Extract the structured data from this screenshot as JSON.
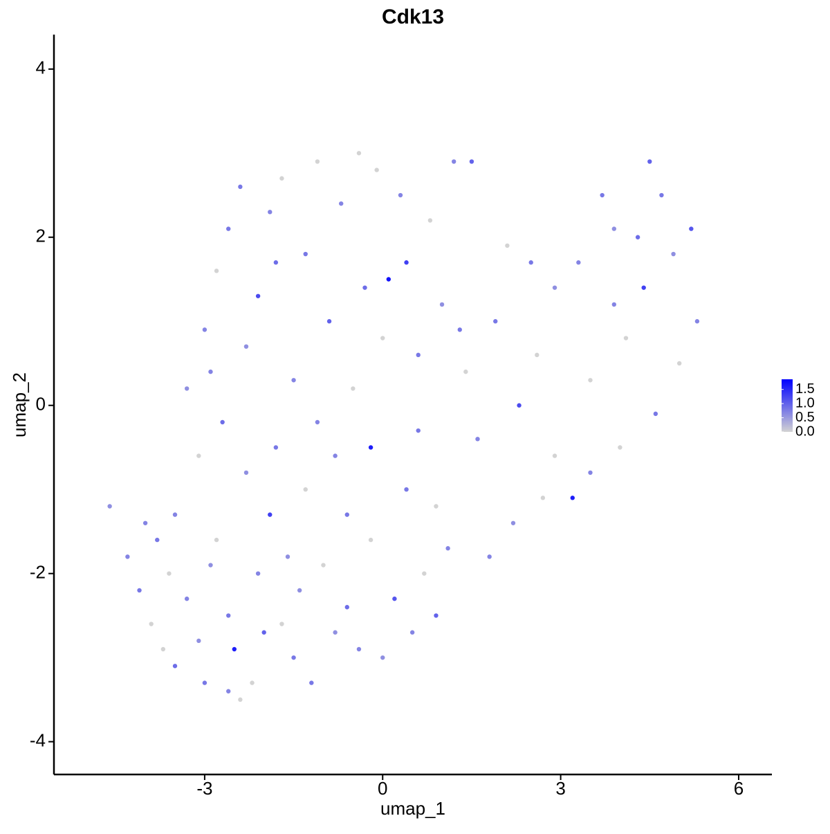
{
  "chart_data": {
    "type": "scatter",
    "title": "Cdk13",
    "x_label": "umap_1",
    "y_label": "umap_2",
    "xlim": [
      -5.54,
      6.56
    ],
    "ylim": [
      -4.39,
      4.41
    ],
    "xticks": [
      -3,
      0,
      3,
      6
    ],
    "yticks": [
      -4,
      -2,
      0,
      2,
      4
    ],
    "color_low": "#d3d3d3",
    "color_high": "#0000ff",
    "colorlim": [
      0,
      1.86
    ],
    "colorticks": [
      {
        "value": 0,
        "label": "0.0"
      },
      {
        "value": 0.5,
        "label": "0.5"
      },
      {
        "value": 1,
        "label": "1.0"
      },
      {
        "value": 1.5,
        "label": "1.5"
      }
    ],
    "x": [
      -4.6,
      -4.3,
      -4.1,
      -3.9,
      -3.7,
      -3.5,
      -3.3,
      -3.1,
      -3.0,
      -2.8,
      -2.6,
      -2.5,
      -2.4,
      -2.2,
      -2.1,
      -1.9,
      -1.7,
      -1.5,
      -1.4,
      -1.2,
      -1.0,
      -0.8,
      -0.6,
      -0.4,
      -0.2,
      0.0,
      0.2,
      0.5,
      0.7,
      0.9,
      1.1,
      0.4,
      -0.2,
      -0.8,
      -1.3,
      -1.8,
      -2.3,
      -2.7,
      -3.1,
      -3.5,
      -3.8,
      -3.3,
      -3.0,
      -2.8,
      -2.6,
      -2.3,
      -2.1,
      -1.9,
      -1.7,
      -1.5,
      -1.3,
      -1.1,
      -0.9,
      -0.7,
      -0.5,
      -0.3,
      -0.1,
      0.1,
      0.3,
      0.4,
      0.6,
      0.8,
      1.0,
      1.2,
      1.4,
      1.5,
      1.6,
      1.9,
      2.1,
      2.3,
      2.5,
      2.7,
      2.9,
      3.2,
      3.3,
      3.5,
      3.7,
      3.9,
      4.1,
      4.3,
      4.4,
      4.5,
      4.7,
      4.9,
      5.0,
      5.2,
      5.3,
      4.6,
      4.0,
      3.5,
      2.9,
      2.2,
      1.8,
      0.6,
      0.0,
      -0.6,
      -1.6,
      -2.6,
      -3.6,
      -4.0,
      -2.9,
      -2.0,
      -1.1,
      0.9,
      1.3,
      2.6,
      3.9,
      -2.4,
      -0.4,
      -2.9,
      -1.8
    ],
    "values": [
      -1.2,
      -1.8,
      -2.2,
      -2.6,
      -2.9,
      -3.1,
      -2.3,
      -2.8,
      -3.3,
      -1.6,
      -3.4,
      -2.9,
      -3.5,
      -3.3,
      -2.0,
      -1.3,
      -2.6,
      -3.0,
      -2.2,
      -3.3,
      -1.9,
      -2.7,
      -2.4,
      -2.9,
      -1.6,
      -3.0,
      -2.3,
      -2.7,
      -2.0,
      -2.5,
      -1.7,
      -1.0,
      -0.5,
      -0.6,
      -1.0,
      -0.5,
      -0.8,
      -0.2,
      -0.6,
      -1.3,
      -1.6,
      0.2,
      0.9,
      1.6,
      2.1,
      0.7,
      1.3,
      2.3,
      2.7,
      0.3,
      1.8,
      2.9,
      1.0,
      2.4,
      0.2,
      1.4,
      2.8,
      1.5,
      2.5,
      1.7,
      0.6,
      2.2,
      1.2,
      2.9,
      0.4,
      2.9,
      -0.4,
      1.0,
      1.9,
      0.0,
      1.7,
      -1.1,
      1.4,
      -1.1,
      1.7,
      0.3,
      2.5,
      1.2,
      0.8,
      2.0,
      1.4,
      2.9,
      2.5,
      1.8,
      0.5,
      2.1,
      1.0,
      -0.1,
      -0.5,
      -0.8,
      -0.6,
      -1.4,
      -1.8,
      -0.3,
      0.8,
      -1.3,
      -1.8,
      -2.5,
      -2.0,
      -1.4,
      -1.9,
      -2.7,
      -0.2,
      -1.2,
      0.9,
      0.6,
      2.1,
      2.6,
      3.0,
      0.4,
      1.7
    ],
    "expression": [
      0.6,
      0.7,
      0.8,
      0,
      0,
      0.9,
      0.7,
      0.6,
      0.8,
      0,
      0.7,
      1.6,
      0,
      0,
      0.7,
      1.3,
      0,
      0.8,
      0.6,
      0.8,
      0,
      0.6,
      0.9,
      0.7,
      0,
      0.6,
      1.1,
      0.7,
      0,
      1.0,
      0.7,
      0.8,
      1.6,
      0.7,
      0,
      0.8,
      0.6,
      0.9,
      0,
      0.7,
      0.8,
      0.6,
      0.7,
      0,
      0.8,
      0.6,
      1.2,
      0.7,
      0,
      0.7,
      0.8,
      0,
      1.0,
      0.7,
      0,
      0.9,
      0,
      1.7,
      0.7,
      1.3,
      0.8,
      0,
      0.6,
      0.7,
      0,
      1.0,
      0.7,
      0.8,
      0,
      1.2,
      0.8,
      0,
      0.6,
      1.6,
      0.7,
      0,
      0.8,
      0.7,
      0,
      0.9,
      1.3,
      1.0,
      0.8,
      0.6,
      0,
      1.1,
      0.7,
      0.8,
      0,
      0.7,
      0,
      0.6,
      0.7,
      0.8,
      0,
      0.8,
      0.6,
      0.8,
      0,
      0.7,
      0.6,
      1.0,
      0.7,
      0,
      0.8,
      0,
      0.6,
      0.8,
      0,
      0.7,
      0.9
    ]
  }
}
